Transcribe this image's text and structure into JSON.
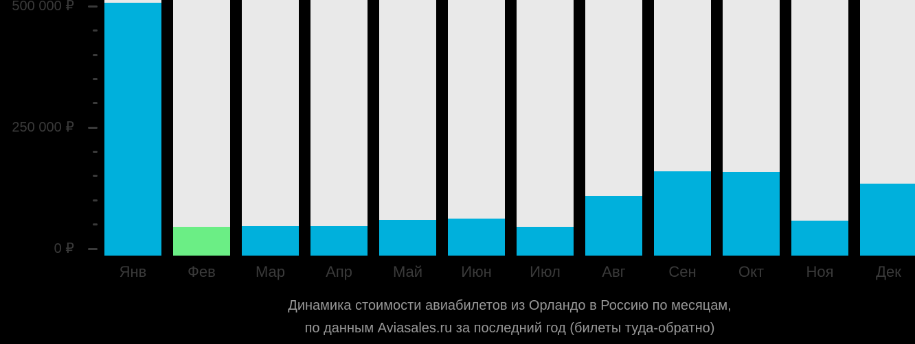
{
  "chart_data": {
    "type": "bar",
    "title_lines": [
      "Динамика стоимости авиабилетов из Орландо в Россию по месяцам,",
      "по данным Aviasales.ru за последний год (билеты туда-обратно)"
    ],
    "categories": [
      "Янв",
      "Фев",
      "Мар",
      "Апр",
      "Май",
      "Июн",
      "Июл",
      "Авг",
      "Сен",
      "Окт",
      "Ноя",
      "Дек"
    ],
    "values": [
      508000,
      45000,
      47000,
      47000,
      59000,
      62000,
      46000,
      109000,
      160000,
      158000,
      58000,
      134000
    ],
    "currency": "₽",
    "min_value_index": 1,
    "y_axis": {
      "ticks_labeled": [
        {
          "value": 0,
          "label": "0 ₽"
        },
        {
          "value": 250000,
          "label": "250 000 ₽"
        },
        {
          "value": 500000,
          "label": "500 000 ₽"
        }
      ],
      "minor_tick_step": 50000,
      "range_min": -14000,
      "range_max": 513000
    },
    "legend": "none",
    "grid": "off",
    "colors": {
      "bar": "#00b0dc",
      "bar_min": "#6bee85",
      "track": "#e9e9e9",
      "axis_text": "#3a3a3a",
      "tick": "#3a3a3a",
      "title_text": "#989898",
      "background": "#000000"
    }
  }
}
